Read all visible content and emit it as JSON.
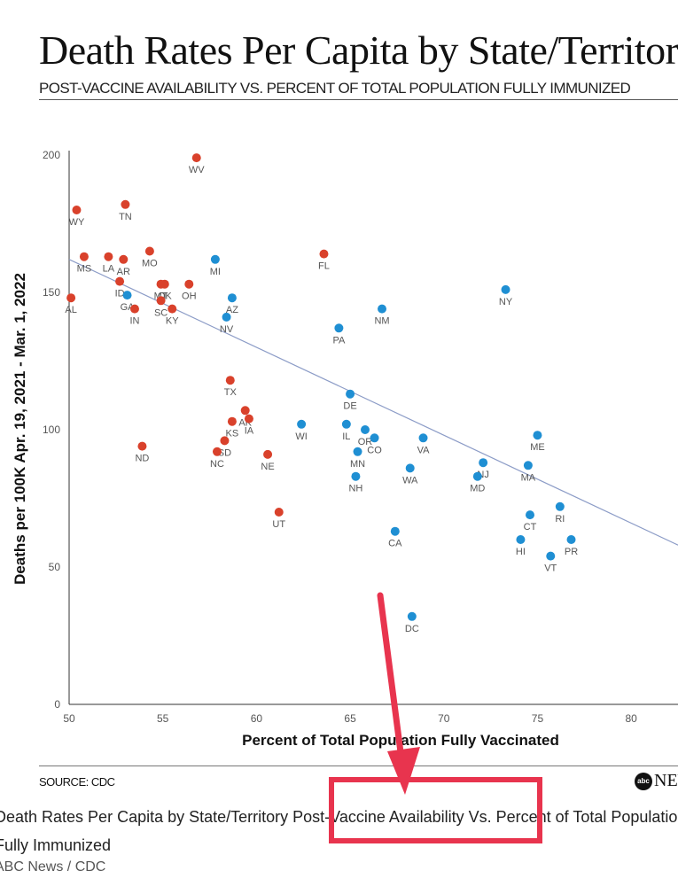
{
  "header": {
    "title": "Death Rates Per Capita by State/Territory",
    "subtitle": "POST-VACCINE AVAILABILITY VS. PERCENT OF TOTAL POPULATION FULLY IMMUNIZED"
  },
  "footer": {
    "source": "SOURCE: CDC",
    "logo_mark": "abc",
    "logo_text": "NEWS"
  },
  "caption": {
    "part1": "Death Rates Per Capita by State/Territory ",
    "highlight": "Post-Vaccine Availability",
    "part2": " Vs. Percent of Total Population Fully Immunized",
    "credit": "ABC News / CDC"
  },
  "annotation": {
    "color": "#e8344e",
    "shape": "arrow-and-box"
  },
  "chart_data": {
    "type": "scatter",
    "xlabel": "Percent of Total Population Fully Vaccinated",
    "ylabel": "Deaths per 100K Apr. 19, 2021 - Mar. 1, 2022",
    "xlim": [
      50,
      82.5
    ],
    "ylim": [
      0,
      200
    ],
    "xticks": [
      50,
      55,
      60,
      65,
      70,
      75,
      80
    ],
    "yticks": [
      0,
      50,
      100,
      150,
      200
    ],
    "grid": false,
    "trendline": {
      "x": [
        50,
        82.5
      ],
      "y": [
        162,
        58
      ]
    },
    "colors": {
      "red": "#d9412b",
      "blue": "#1f8fd3",
      "trend": "#8c9cc7"
    },
    "points": [
      {
        "state": "WV",
        "x": 56.8,
        "y": 199,
        "color": "red"
      },
      {
        "state": "WY",
        "x": 50.4,
        "y": 180,
        "color": "red"
      },
      {
        "state": "TN",
        "x": 53.0,
        "y": 182,
        "color": "red"
      },
      {
        "state": "MS",
        "x": 50.8,
        "y": 163,
        "color": "red"
      },
      {
        "state": "LA",
        "x": 52.1,
        "y": 163,
        "color": "red"
      },
      {
        "state": "AR",
        "x": 52.9,
        "y": 162,
        "color": "red"
      },
      {
        "state": "MO",
        "x": 54.3,
        "y": 165,
        "color": "red"
      },
      {
        "state": "ID",
        "x": 52.7,
        "y": 154,
        "color": "red"
      },
      {
        "state": "OK",
        "x": 55.1,
        "y": 153,
        "color": "red"
      },
      {
        "state": "MT",
        "x": 54.9,
        "y": 153,
        "color": "red"
      },
      {
        "state": "OH",
        "x": 56.4,
        "y": 153,
        "color": "red"
      },
      {
        "state": "AL",
        "x": 50.1,
        "y": 148,
        "color": "red"
      },
      {
        "state": "GA",
        "x": 53.1,
        "y": 149,
        "color": "blue"
      },
      {
        "state": "SC",
        "x": 54.9,
        "y": 147,
        "color": "red"
      },
      {
        "state": "KY",
        "x": 55.5,
        "y": 144,
        "color": "red"
      },
      {
        "state": "IN",
        "x": 53.5,
        "y": 144,
        "color": "red"
      },
      {
        "state": "MI",
        "x": 57.8,
        "y": 162,
        "color": "blue"
      },
      {
        "state": "AZ",
        "x": 58.7,
        "y": 148,
        "color": "blue"
      },
      {
        "state": "NV",
        "x": 58.4,
        "y": 141,
        "color": "blue"
      },
      {
        "state": "FL",
        "x": 63.6,
        "y": 164,
        "color": "red"
      },
      {
        "state": "NY",
        "x": 73.3,
        "y": 151,
        "color": "blue"
      },
      {
        "state": "NM",
        "x": 66.7,
        "y": 144,
        "color": "blue"
      },
      {
        "state": "PA",
        "x": 64.4,
        "y": 137,
        "color": "blue"
      },
      {
        "state": "TX",
        "x": 58.6,
        "y": 118,
        "color": "red"
      },
      {
        "state": "DE",
        "x": 65.0,
        "y": 113,
        "color": "blue"
      },
      {
        "state": "AK",
        "x": 59.4,
        "y": 107,
        "color": "red"
      },
      {
        "state": "KS",
        "x": 58.7,
        "y": 103,
        "color": "red"
      },
      {
        "state": "IA",
        "x": 59.6,
        "y": 104,
        "color": "red"
      },
      {
        "state": "WI",
        "x": 62.4,
        "y": 102,
        "color": "blue"
      },
      {
        "state": "IL",
        "x": 64.8,
        "y": 102,
        "color": "blue"
      },
      {
        "state": "OR",
        "x": 65.8,
        "y": 100,
        "color": "blue"
      },
      {
        "state": "CO",
        "x": 66.3,
        "y": 97,
        "color": "blue"
      },
      {
        "state": "VA",
        "x": 68.9,
        "y": 97,
        "color": "blue"
      },
      {
        "state": "ME",
        "x": 75.0,
        "y": 98,
        "color": "blue"
      },
      {
        "state": "SD",
        "x": 58.3,
        "y": 96,
        "color": "red"
      },
      {
        "state": "NC",
        "x": 57.9,
        "y": 92,
        "color": "red"
      },
      {
        "state": "ND",
        "x": 53.9,
        "y": 94,
        "color": "red"
      },
      {
        "state": "NE",
        "x": 60.6,
        "y": 91,
        "color": "red"
      },
      {
        "state": "MN",
        "x": 65.4,
        "y": 92,
        "color": "blue"
      },
      {
        "state": "NJ",
        "x": 72.1,
        "y": 88,
        "color": "blue"
      },
      {
        "state": "MA",
        "x": 74.5,
        "y": 87,
        "color": "blue"
      },
      {
        "state": "WA",
        "x": 68.2,
        "y": 86,
        "color": "blue"
      },
      {
        "state": "MD",
        "x": 71.8,
        "y": 83,
        "color": "blue"
      },
      {
        "state": "NH",
        "x": 65.3,
        "y": 83,
        "color": "blue"
      },
      {
        "state": "UT",
        "x": 61.2,
        "y": 70,
        "color": "red"
      },
      {
        "state": "CT",
        "x": 74.6,
        "y": 69,
        "color": "blue"
      },
      {
        "state": "RI",
        "x": 76.2,
        "y": 72,
        "color": "blue"
      },
      {
        "state": "CA",
        "x": 67.4,
        "y": 63,
        "color": "blue"
      },
      {
        "state": "HI",
        "x": 74.1,
        "y": 60,
        "color": "blue"
      },
      {
        "state": "PR",
        "x": 76.8,
        "y": 60,
        "color": "blue"
      },
      {
        "state": "VT",
        "x": 75.7,
        "y": 54,
        "color": "blue"
      },
      {
        "state": "DC",
        "x": 68.3,
        "y": 32,
        "color": "blue"
      }
    ]
  }
}
